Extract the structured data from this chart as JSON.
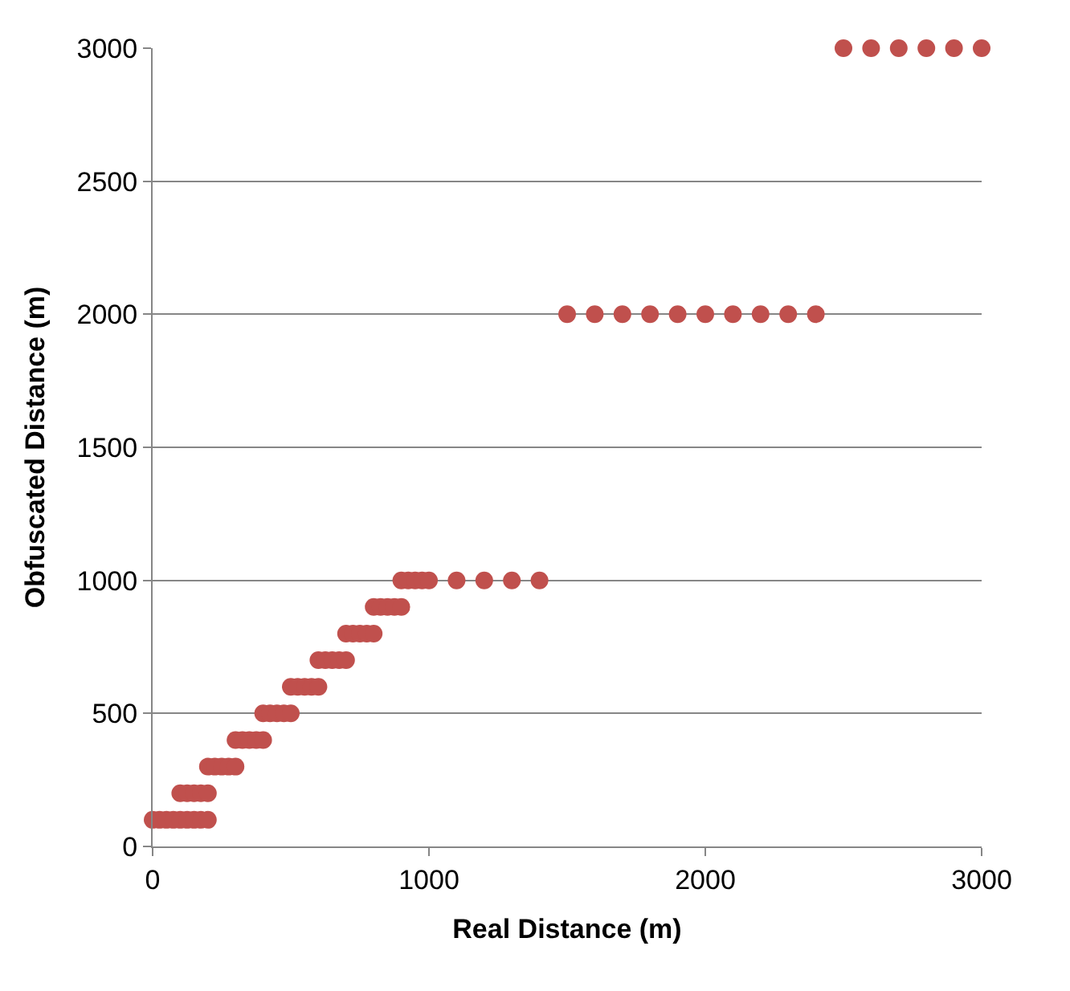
{
  "chart_data": {
    "type": "scatter",
    "xlabel": "Real Distance (m)",
    "ylabel": "Obfuscated Distance (m)",
    "xlim": [
      0,
      3000
    ],
    "xticks": [
      0,
      1000,
      2000,
      3000
    ],
    "ylim": [
      0,
      3000
    ],
    "yticks": [
      0,
      500,
      1000,
      1500,
      2000,
      2500,
      3000
    ],
    "grid": "y",
    "marker": "circle",
    "series": [
      {
        "color": "#c0504d",
        "x": [
          0,
          25,
          50,
          75,
          100,
          125,
          150,
          175,
          200,
          100,
          125,
          150,
          175,
          200,
          200,
          225,
          250,
          275,
          300,
          300,
          325,
          350,
          375,
          400,
          400,
          425,
          450,
          475,
          500,
          500,
          525,
          550,
          575,
          600,
          600,
          625,
          650,
          675,
          700,
          700,
          725,
          750,
          775,
          800,
          800,
          825,
          850,
          875,
          900,
          900,
          925,
          950,
          975,
          1000,
          1100,
          1200,
          1300,
          1400,
          1500,
          1600,
          1700,
          1800,
          1900,
          2000,
          2100,
          2200,
          2300,
          2400,
          2500,
          2600,
          2700,
          2800,
          2900,
          3000
        ],
        "values": [
          100,
          100,
          100,
          100,
          100,
          100,
          100,
          100,
          100,
          200,
          200,
          200,
          200,
          200,
          300,
          300,
          300,
          300,
          300,
          400,
          400,
          400,
          400,
          400,
          500,
          500,
          500,
          500,
          500,
          600,
          600,
          600,
          600,
          600,
          700,
          700,
          700,
          700,
          700,
          800,
          800,
          800,
          800,
          800,
          900,
          900,
          900,
          900,
          900,
          1000,
          1000,
          1000,
          1000,
          1000,
          1000,
          1000,
          1000,
          1000,
          2000,
          2000,
          2000,
          2000,
          2000,
          2000,
          2000,
          2000,
          2000,
          2000,
          3000,
          3000,
          3000,
          3000,
          3000,
          3000
        ]
      }
    ]
  }
}
